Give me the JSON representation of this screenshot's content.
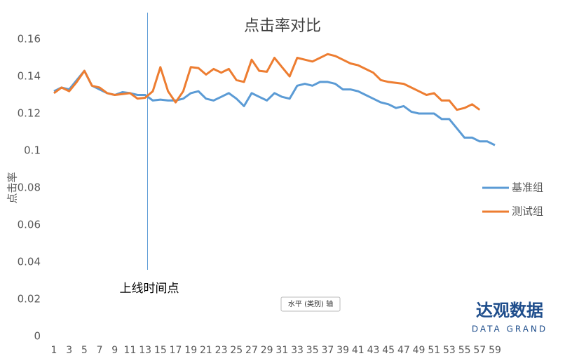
{
  "chart_data": {
    "type": "line",
    "title": "点击率对比",
    "y_label": "点击率",
    "annotation": "上线时间点",
    "axis_tooltip": "水平 (类别) 轴",
    "watermark": {
      "name": "达观数据",
      "subtitle": "DATA GRAND"
    },
    "categories": [
      "1",
      null,
      "3",
      null,
      "5",
      null,
      "7",
      null,
      "9",
      null,
      "11",
      null,
      "13",
      null,
      "15",
      null,
      "17",
      null,
      "19",
      null,
      "21",
      null,
      "23",
      null,
      "25",
      null,
      "27",
      null,
      "29",
      null,
      "31",
      null,
      "33",
      null,
      "35",
      null,
      "37",
      null,
      "39",
      null,
      "41",
      null,
      "43",
      null,
      "45",
      null,
      "47",
      null,
      "49",
      null,
      "51",
      null,
      "53",
      null,
      "55",
      null,
      "57",
      null,
      "59"
    ],
    "series": [
      {
        "name": "基准组",
        "color": "#5b9bd5",
        "values": [
          0.132,
          0.134,
          0.133,
          0.138,
          0.143,
          0.135,
          0.133,
          0.131,
          0.13,
          0.1315,
          0.131,
          0.13,
          0.13,
          0.127,
          0.1275,
          0.127,
          0.127,
          0.128,
          0.131,
          0.132,
          0.128,
          0.127,
          0.129,
          0.131,
          0.128,
          0.124,
          0.131,
          0.129,
          0.127,
          0.131,
          0.129,
          0.128,
          0.135,
          0.136,
          0.135,
          0.137,
          0.137,
          0.136,
          0.133,
          0.133,
          0.132,
          0.13,
          0.128,
          0.126,
          0.125,
          0.123,
          0.124,
          0.121,
          0.12,
          0.12,
          0.12,
          0.117,
          0.117,
          0.112,
          0.107,
          0.107,
          0.105,
          0.105,
          0.103
        ]
      },
      {
        "name": "测试组",
        "color": "#ed7d31",
        "values": [
          0.131,
          0.134,
          0.132,
          0.137,
          0.143,
          0.135,
          0.134,
          0.131,
          0.13,
          0.1305,
          0.131,
          0.128,
          0.1285,
          0.132,
          0.145,
          0.132,
          0.126,
          0.132,
          0.145,
          0.1445,
          0.141,
          0.144,
          0.142,
          0.144,
          0.138,
          0.137,
          0.149,
          0.143,
          0.1425,
          0.15,
          0.145,
          0.14,
          0.15,
          0.149,
          0.148,
          0.15,
          0.152,
          0.151,
          0.149,
          0.147,
          0.146,
          0.144,
          0.142,
          0.138,
          0.137,
          0.1365,
          0.136,
          0.134,
          0.132,
          0.13,
          0.131,
          0.127,
          0.127,
          0.122,
          0.123,
          0.125,
          0.122,
          null,
          null
        ]
      }
    ],
    "ylim": [
      0,
      0.17
    ],
    "yticks": [
      0,
      0.02,
      0.04,
      0.06,
      0.08,
      0.1,
      0.12,
      0.14,
      0.16
    ],
    "legend": "right",
    "grid": false
  }
}
